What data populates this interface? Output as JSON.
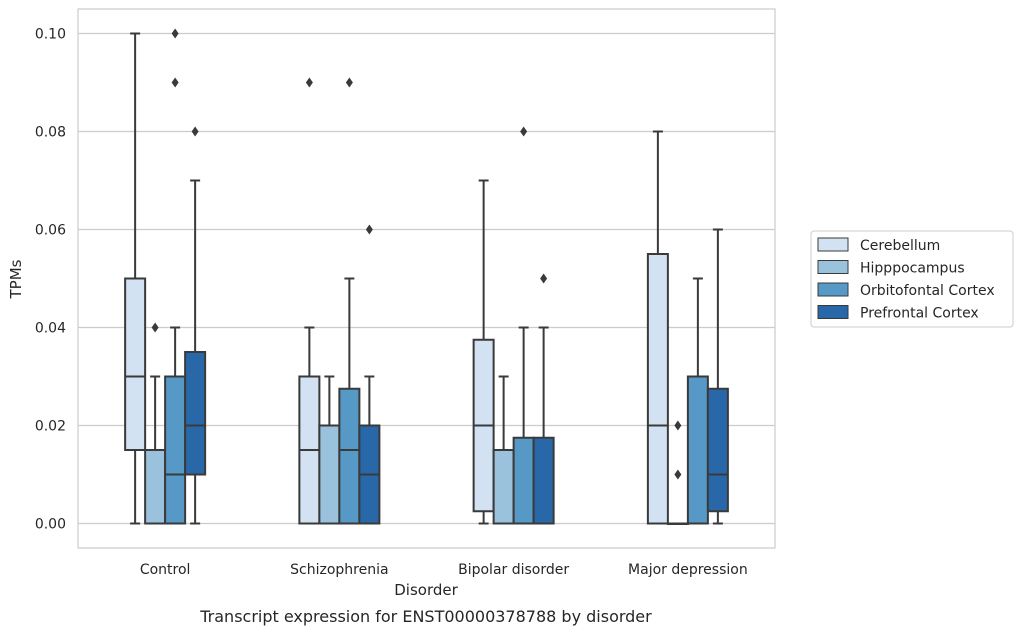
{
  "chart_data": {
    "type": "box",
    "title": "",
    "caption": "Transcript expression for ENST00000378788 by disorder",
    "xlabel": "Disorder",
    "ylabel": "TPMs",
    "ylim": [
      -0.005,
      0.105
    ],
    "yticks": [
      0.0,
      0.02,
      0.04,
      0.06,
      0.08,
      0.1
    ],
    "ytick_labels": [
      "0.00",
      "0.02",
      "0.04",
      "0.06",
      "0.08",
      "0.10"
    ],
    "grid": "horizontal",
    "legend_position": "right, vertically centered",
    "categories": [
      "Control",
      "Schizophrenia",
      "Bipolar disorder",
      "Major depression"
    ],
    "series": [
      {
        "name": "Cerebellum",
        "color": "#d2e2f2",
        "boxes": [
          {
            "min": 0.0,
            "q1": 0.015,
            "median": 0.03,
            "q3": 0.05,
            "max": 0.1,
            "outliers": []
          },
          {
            "min": 0.0,
            "q1": 0.0,
            "median": 0.015,
            "q3": 0.03,
            "max": 0.04,
            "outliers": [
              0.09
            ]
          },
          {
            "min": 0.0,
            "q1": 0.0025,
            "median": 0.02,
            "q3": 0.0375,
            "max": 0.07,
            "outliers": []
          },
          {
            "min": 0.0,
            "q1": 0.0,
            "median": 0.02,
            "q3": 0.055,
            "max": 0.08,
            "outliers": []
          }
        ]
      },
      {
        "name": "Hipppocampus",
        "color": "#9ac2dc",
        "boxes": [
          {
            "min": 0.0,
            "q1": 0.0,
            "median": 0.0,
            "q3": 0.015,
            "max": 0.03,
            "outliers": [
              0.04
            ]
          },
          {
            "min": 0.0,
            "q1": 0.0,
            "median": 0.0,
            "q3": 0.02,
            "max": 0.03,
            "outliers": []
          },
          {
            "min": 0.0,
            "q1": 0.0,
            "median": 0.0,
            "q3": 0.015,
            "max": 0.03,
            "outliers": []
          },
          {
            "min": 0.0,
            "q1": 0.0,
            "median": 0.0,
            "q3": 0.0,
            "max": 0.0,
            "outliers": [
              0.01,
              0.02
            ]
          }
        ]
      },
      {
        "name": "Orbitofontal Cortex",
        "color": "#5799c6",
        "boxes": [
          {
            "min": 0.0,
            "q1": 0.0,
            "median": 0.01,
            "q3": 0.03,
            "max": 0.04,
            "outliers": [
              0.09,
              0.1
            ]
          },
          {
            "min": 0.0,
            "q1": 0.0,
            "median": 0.015,
            "q3": 0.0275,
            "max": 0.05,
            "outliers": [
              0.09
            ]
          },
          {
            "min": 0.0,
            "q1": 0.0,
            "median": 0.0,
            "q3": 0.0175,
            "max": 0.04,
            "outliers": [
              0.08
            ]
          },
          {
            "min": 0.0,
            "q1": 0.0,
            "median": 0.0,
            "q3": 0.03,
            "max": 0.05,
            "outliers": []
          }
        ]
      },
      {
        "name": "Prefrontal Cortex",
        "color": "#2868a9",
        "boxes": [
          {
            "min": 0.0,
            "q1": 0.01,
            "median": 0.02,
            "q3": 0.035,
            "max": 0.07,
            "outliers": [
              0.08
            ]
          },
          {
            "min": 0.0,
            "q1": 0.0,
            "median": 0.01,
            "q3": 0.02,
            "max": 0.03,
            "outliers": [
              0.06
            ]
          },
          {
            "min": 0.0,
            "q1": 0.0,
            "median": 0.0,
            "q3": 0.0175,
            "max": 0.04,
            "outliers": [
              0.05
            ]
          },
          {
            "min": 0.0,
            "q1": 0.0025,
            "median": 0.01,
            "q3": 0.0275,
            "max": 0.06,
            "outliers": []
          }
        ]
      }
    ]
  }
}
